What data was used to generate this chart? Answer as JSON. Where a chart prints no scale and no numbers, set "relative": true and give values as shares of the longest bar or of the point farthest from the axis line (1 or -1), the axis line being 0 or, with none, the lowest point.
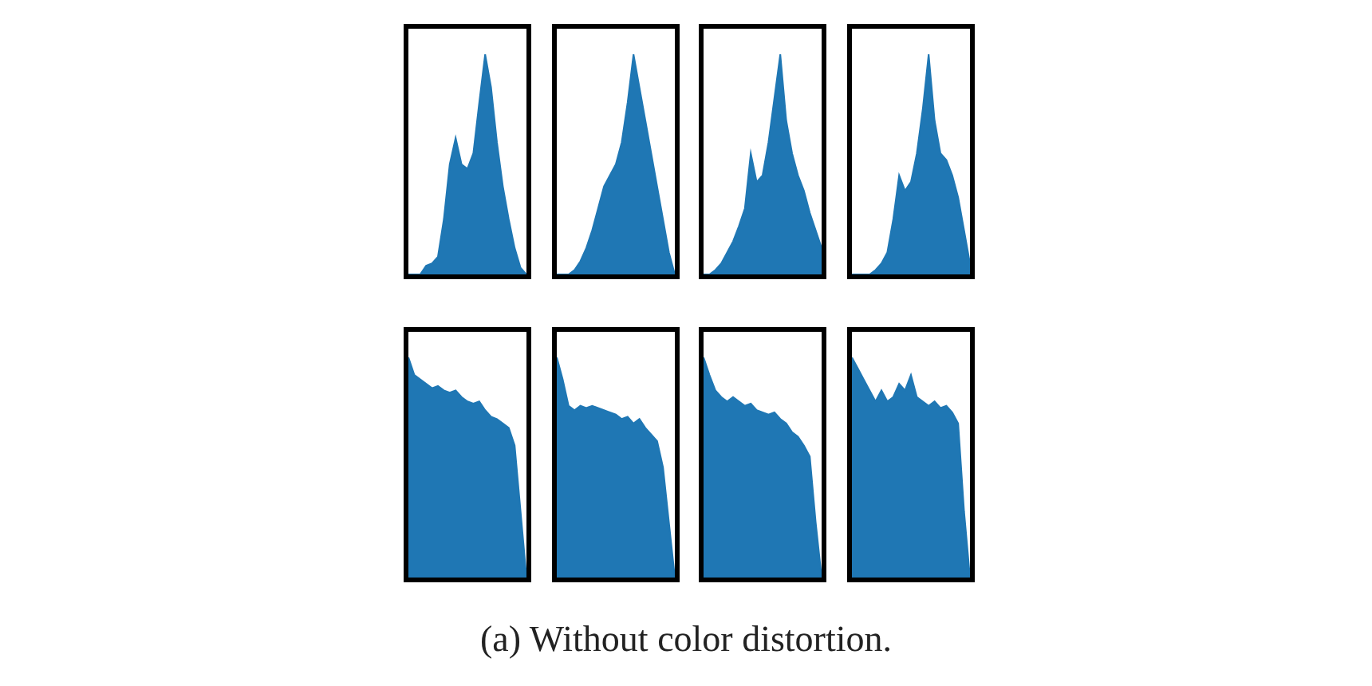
{
  "chart_data": [
    {
      "type": "area",
      "relative": true,
      "color": "#1f77b4",
      "categories": [
        null,
        null,
        null,
        null,
        null,
        null,
        null,
        null,
        null,
        null,
        null,
        null,
        null,
        null,
        null,
        null,
        null,
        null,
        null,
        null,
        null
      ],
      "values": [
        0,
        0,
        0,
        0.04,
        0.05,
        0.08,
        0.25,
        0.5,
        0.62,
        0.5,
        0.48,
        0.55,
        0.78,
        1.0,
        0.85,
        0.6,
        0.4,
        0.25,
        0.12,
        0.03,
        0
      ]
    },
    {
      "type": "area",
      "relative": true,
      "color": "#1f77b4",
      "categories": [
        null,
        null,
        null,
        null,
        null,
        null,
        null,
        null,
        null,
        null,
        null,
        null,
        null,
        null,
        null,
        null,
        null,
        null,
        null,
        null,
        null
      ],
      "values": [
        0,
        0,
        0,
        0.02,
        0.06,
        0.12,
        0.2,
        0.3,
        0.4,
        0.45,
        0.5,
        0.6,
        0.78,
        1.0,
        0.85,
        0.7,
        0.55,
        0.4,
        0.25,
        0.1,
        0
      ]
    },
    {
      "type": "area",
      "relative": true,
      "color": "#1f77b4",
      "categories": [
        null,
        null,
        null,
        null,
        null,
        null,
        null,
        null,
        null,
        null,
        null,
        null,
        null,
        null,
        null,
        null,
        null,
        null,
        null,
        null,
        null
      ],
      "values": [
        0,
        0,
        0.02,
        0.05,
        0.1,
        0.15,
        0.22,
        0.3,
        0.55,
        0.42,
        0.45,
        0.6,
        0.8,
        1.0,
        0.7,
        0.55,
        0.45,
        0.38,
        0.28,
        0.2,
        0.12
      ]
    },
    {
      "type": "area",
      "relative": true,
      "color": "#1f77b4",
      "categories": [
        null,
        null,
        null,
        null,
        null,
        null,
        null,
        null,
        null,
        null,
        null,
        null,
        null,
        null,
        null,
        null,
        null,
        null,
        null,
        null,
        null
      ],
      "values": [
        0,
        0,
        0,
        0,
        0.02,
        0.05,
        0.1,
        0.25,
        0.45,
        0.38,
        0.42,
        0.55,
        0.75,
        1.0,
        0.7,
        0.55,
        0.52,
        0.45,
        0.35,
        0.2,
        0.05
      ]
    },
    {
      "type": "area",
      "relative": true,
      "color": "#1f77b4",
      "categories": [
        null,
        null,
        null,
        null,
        null,
        null,
        null,
        null,
        null,
        null,
        null,
        null,
        null,
        null,
        null,
        null,
        null,
        null,
        null,
        null,
        null
      ],
      "values": [
        1.0,
        0.92,
        0.9,
        0.88,
        0.86,
        0.87,
        0.85,
        0.84,
        0.85,
        0.82,
        0.8,
        0.79,
        0.8,
        0.76,
        0.73,
        0.72,
        0.7,
        0.68,
        0.6,
        0.3,
        0
      ]
    },
    {
      "type": "area",
      "relative": true,
      "color": "#1f77b4",
      "categories": [
        null,
        null,
        null,
        null,
        null,
        null,
        null,
        null,
        null,
        null,
        null,
        null,
        null,
        null,
        null,
        null,
        null,
        null,
        null,
        null,
        null
      ],
      "values": [
        1.0,
        0.9,
        0.78,
        0.76,
        0.78,
        0.77,
        0.78,
        0.77,
        0.76,
        0.75,
        0.74,
        0.72,
        0.73,
        0.7,
        0.72,
        0.68,
        0.65,
        0.62,
        0.5,
        0.25,
        0
      ]
    },
    {
      "type": "area",
      "relative": true,
      "color": "#1f77b4",
      "categories": [
        null,
        null,
        null,
        null,
        null,
        null,
        null,
        null,
        null,
        null,
        null,
        null,
        null,
        null,
        null,
        null,
        null,
        null,
        null,
        null,
        null
      ],
      "values": [
        1.0,
        0.92,
        0.85,
        0.82,
        0.8,
        0.82,
        0.8,
        0.78,
        0.79,
        0.76,
        0.75,
        0.74,
        0.75,
        0.72,
        0.7,
        0.66,
        0.64,
        0.6,
        0.55,
        0.25,
        0
      ]
    },
    {
      "type": "area",
      "relative": true,
      "color": "#1f77b4",
      "categories": [
        null,
        null,
        null,
        null,
        null,
        null,
        null,
        null,
        null,
        null,
        null,
        null,
        null,
        null,
        null,
        null,
        null,
        null,
        null,
        null,
        null
      ],
      "values": [
        1.0,
        0.95,
        0.9,
        0.85,
        0.8,
        0.85,
        0.8,
        0.82,
        0.88,
        0.85,
        0.92,
        0.82,
        0.8,
        0.78,
        0.8,
        0.77,
        0.78,
        0.75,
        0.7,
        0.3,
        0
      ]
    },
    {
      "type": "other",
      "title": "(a) Without color distortion."
    }
  ]
}
